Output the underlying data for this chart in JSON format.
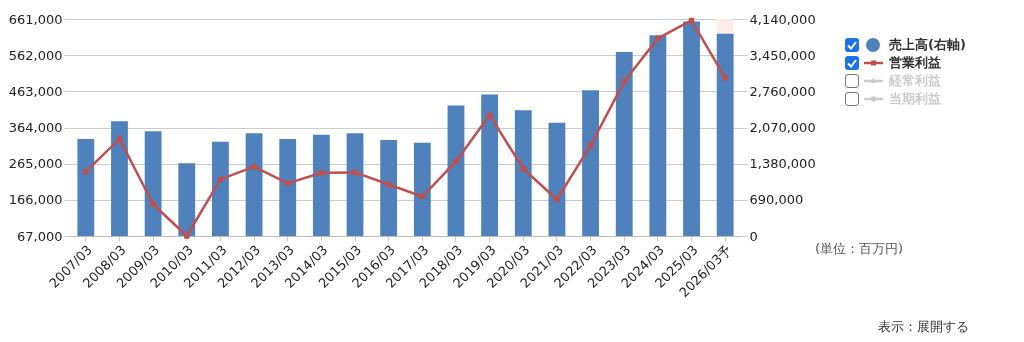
{
  "chart_data": {
    "type": "bar",
    "categories": [
      "2007/03",
      "2008/03",
      "2009/03",
      "2010/03",
      "2011/03",
      "2012/03",
      "2013/03",
      "2014/03",
      "2015/03",
      "2016/03",
      "2017/03",
      "2018/03",
      "2019/03",
      "2020/03",
      "2021/03",
      "2022/03",
      "2023/03",
      "2024/03",
      "2025/03",
      "2026/03予"
    ],
    "series": [
      {
        "name": "売上高(右軸)",
        "axis": "y2",
        "color": "#4f81bd",
        "values": [
          1850000,
          2190000,
          2000000,
          1390000,
          1800000,
          1960000,
          1850000,
          1930000,
          1960000,
          1830000,
          1780000,
          2490000,
          2700000,
          2400000,
          2160000,
          2780000,
          3510000,
          3830000,
          4090000,
          3860000
        ]
      },
      {
        "name": "営業利益",
        "type": "line",
        "color": "#c0504d",
        "marker": "square",
        "values": [
          243000,
          333000,
          154000,
          67000,
          222000,
          257000,
          211000,
          240000,
          241000,
          208000,
          175000,
          271000,
          398000,
          251000,
          167000,
          315000,
          490000,
          608000,
          657000,
          500000
        ]
      },
      {
        "name": "経常利益",
        "type": "line",
        "color": "#cccccc",
        "marker": "triangle",
        "values": [
          null,
          null,
          null,
          null,
          null,
          null,
          null,
          null,
          null,
          null,
          null,
          null,
          null,
          null,
          null,
          null,
          null,
          null,
          null,
          null
        ]
      },
      {
        "name": "当期利益",
        "type": "line",
        "color": "#cccccc",
        "marker": "circle",
        "values": [
          null,
          null,
          null,
          null,
          null,
          null,
          null,
          null,
          null,
          null,
          null,
          null,
          null,
          null,
          null,
          null,
          null,
          null,
          null,
          null
        ]
      }
    ],
    "ylim": [
      67000,
      661000
    ],
    "yticks": [
      {
        "value": 67000,
        "label": "67,000"
      },
      {
        "value": 166000,
        "label": "166,000"
      },
      {
        "value": 265000,
        "label": "265,000"
      },
      {
        "value": 364000,
        "label": "364,000"
      },
      {
        "value": 463000,
        "label": "463,000"
      },
      {
        "value": 562000,
        "label": "562,000"
      },
      {
        "value": 661000,
        "label": "661,000"
      }
    ],
    "y2lim": [
      0,
      4140000
    ],
    "y2ticks": [
      0,
      {
        "value": 690000,
        "label": "690,000"
      },
      {
        "value": 1380000,
        "label": "1,380,000"
      },
      {
        "value": 2070000,
        "label": "2,070,000"
      },
      {
        "value": 2760000,
        "label": "2,760,000"
      },
      {
        "value": 3450000,
        "label": "3,450,000"
      },
      {
        "value": 4140000,
        "label": "4,140,000"
      }
    ],
    "bands": [
      {
        "axis": "x",
        "from": "2026/03予",
        "to": "2026/03予",
        "color": "#fdecea"
      }
    ],
    "grid": "y",
    "legend": "right",
    "line_style": "solid",
    "annotations": [
      "(単位：百万円)",
      "表示：展開する"
    ]
  }
}
